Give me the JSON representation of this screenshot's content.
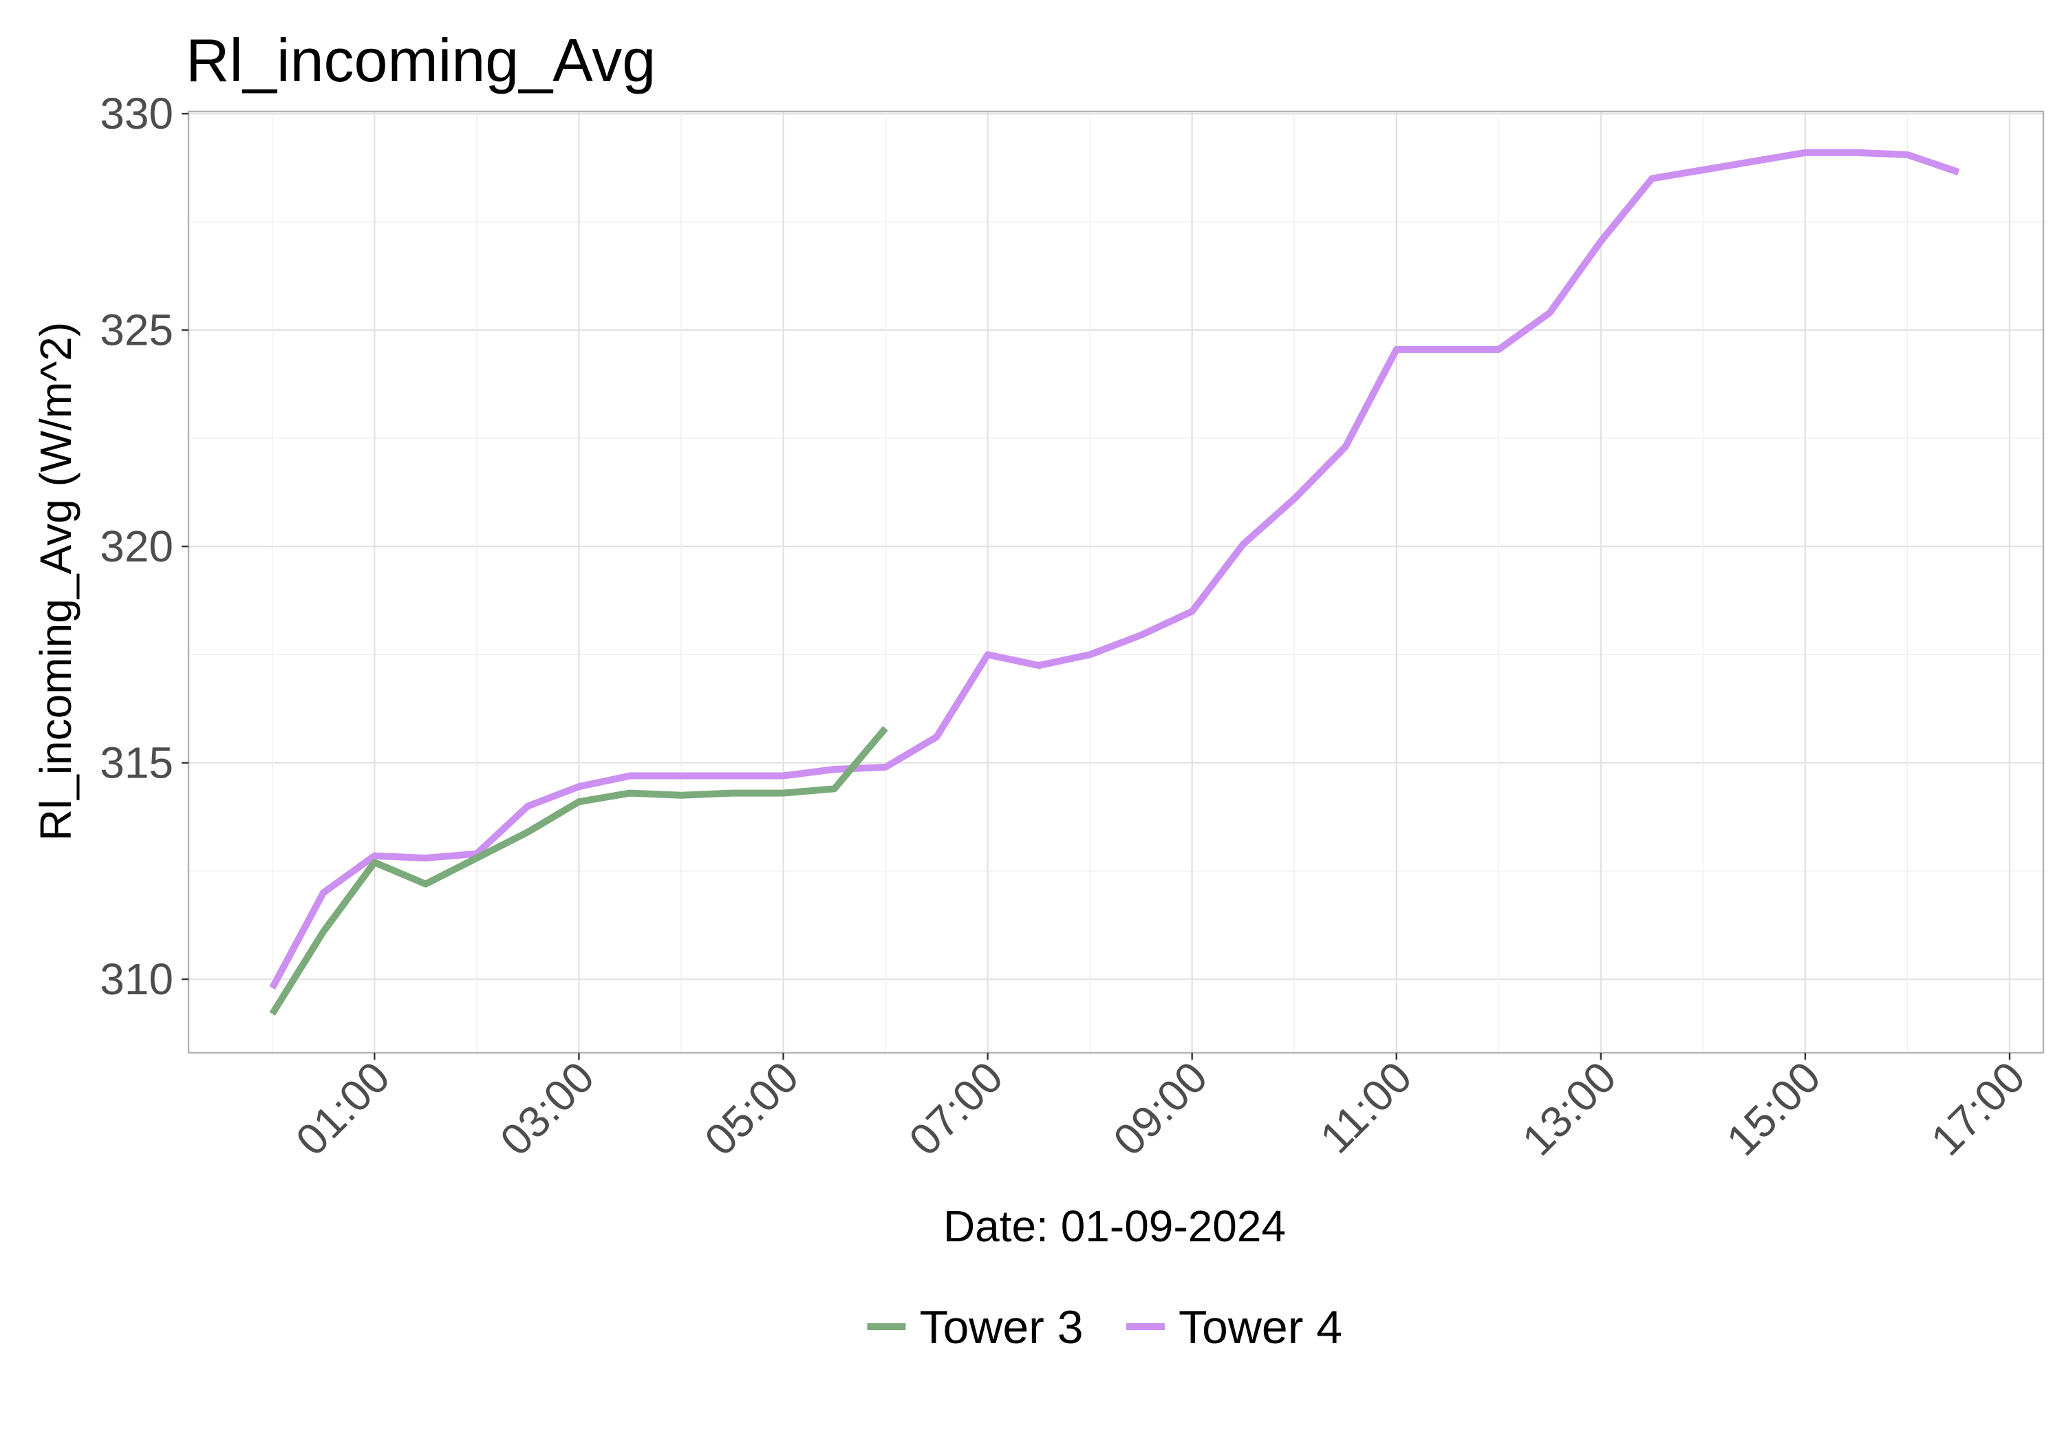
{
  "chart_data": {
    "type": "line",
    "title": "Rl_incoming_Avg",
    "xlabel": "Date: 01-09-2024",
    "ylabel": "Rl_incoming_Avg (W/m^2)",
    "x_tick_labels": [
      "01:00",
      "03:00",
      "05:00",
      "07:00",
      "09:00",
      "11:00",
      "13:00",
      "15:00",
      "17:00"
    ],
    "x_tick_hours": [
      1,
      3,
      5,
      7,
      9,
      11,
      13,
      15,
      17
    ],
    "xlim_hours": [
      -0.82,
      17.33
    ],
    "y_ticks": [
      310,
      315,
      320,
      325,
      330
    ],
    "ylim": [
      308.3,
      330.05
    ],
    "grid": true,
    "legend_position": "bottom",
    "series": [
      {
        "name": "Tower 3",
        "color": "#7bab7b",
        "x_hours": [
          0,
          0.5,
          1,
          1.5,
          2,
          2.5,
          3,
          3.5,
          4,
          4.5,
          5,
          5.5,
          6
        ],
        "values": [
          309.2,
          311.1,
          312.7,
          312.2,
          312.8,
          313.4,
          314.1,
          314.3,
          314.25,
          314.3,
          314.3,
          314.4,
          315.8
        ]
      },
      {
        "name": "Tower 4",
        "color": "#cc8ff2",
        "x_hours": [
          0,
          0.5,
          1,
          1.5,
          2,
          2.5,
          3,
          3.5,
          4,
          4.5,
          5,
          5.5,
          6,
          6.5,
          7,
          7.5,
          8,
          8.5,
          9,
          9.5,
          10,
          10.5,
          11,
          11.5,
          12,
          12.5,
          13,
          13.5,
          14,
          14.5,
          15,
          15.5,
          16,
          16.5
        ],
        "values": [
          309.8,
          312.0,
          312.85,
          312.8,
          312.9,
          314.0,
          314.45,
          314.7,
          314.7,
          314.7,
          314.7,
          314.85,
          314.9,
          315.6,
          317.5,
          317.25,
          317.5,
          317.95,
          318.5,
          320.05,
          321.1,
          322.3,
          324.55,
          324.55,
          324.55,
          325.4,
          327.05,
          328.5,
          328.7,
          328.9,
          329.1,
          329.1,
          329.05,
          328.65
        ]
      }
    ]
  }
}
